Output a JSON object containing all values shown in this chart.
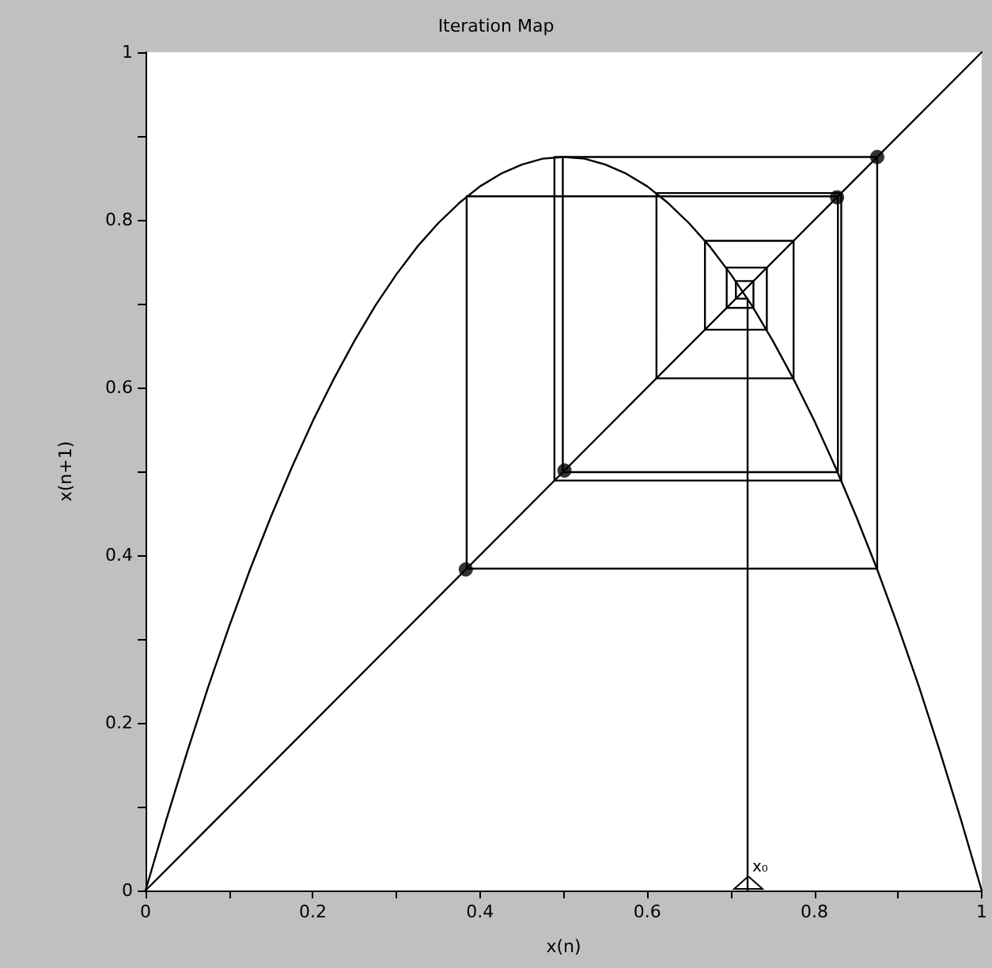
{
  "chart_data": {
    "type": "line",
    "title": "Iteration Map",
    "xlabel": "x(n)",
    "ylabel": "x(n+1)",
    "xlim": [
      0,
      1
    ],
    "ylim": [
      0,
      1
    ],
    "xticks": [
      0,
      {
        "value": 0.1,
        "label": null
      },
      0.2,
      {
        "value": 0.3,
        "label": null
      },
      0.4,
      {
        "value": 0.5,
        "label": null
      },
      0.6,
      {
        "value": 0.7,
        "label": null
      },
      0.8,
      {
        "value": 0.9,
        "label": null
      },
      1
    ],
    "yticks": [
      0,
      {
        "value": 0.1,
        "label": null
      },
      0.2,
      {
        "value": 0.3,
        "label": null
      },
      0.4,
      {
        "value": 0.5,
        "label": null
      },
      0.6,
      {
        "value": 0.7,
        "label": null
      },
      0.8,
      {
        "value": 0.9,
        "label": null
      },
      1
    ],
    "grid": false,
    "marker": "none",
    "line_style": "solid",
    "annotations": [
      {
        "text": "x₀",
        "x": 0.72,
        "y": 0
      }
    ],
    "series": [
      {
        "color": "#000000",
        "x": [
          0,
          0.025,
          0.05,
          0.075,
          0.1,
          0.125,
          0.15,
          0.175,
          0.2,
          0.225,
          0.25,
          0.275,
          0.3,
          0.325,
          0.35,
          0.375,
          0.4,
          0.425,
          0.45,
          0.475,
          0.5,
          0.525,
          0.55,
          0.575,
          0.6,
          0.625,
          0.65,
          0.675,
          0.7,
          0.725,
          0.75,
          0.775,
          0.8,
          0.825,
          0.85,
          0.875,
          0.9,
          0.925,
          0.95,
          0.975,
          1
        ],
        "values": [
          0,
          0.085,
          0.166,
          0.243,
          0.315,
          0.383,
          0.446,
          0.505,
          0.56,
          0.61,
          0.656,
          0.698,
          0.735,
          0.768,
          0.796,
          0.82,
          0.84,
          0.855,
          0.866,
          0.873,
          0.875,
          0.873,
          0.866,
          0.855,
          0.84,
          0.82,
          0.796,
          0.768,
          0.735,
          0.698,
          0.656,
          0.61,
          0.56,
          0.505,
          0.446,
          0.383,
          0.315,
          0.243,
          0.166,
          0.085,
          0
        ]
      },
      {
        "color": "#000000",
        "x": [
          0,
          1
        ],
        "values": [
          0,
          1
        ]
      },
      {
        "color": "#000000",
        "x": [
          0.72,
          0.72,
          0.706,
          0.706,
          0.727,
          0.727,
          0.695,
          0.695,
          0.743,
          0.743,
          0.669,
          0.669,
          0.775,
          0.775,
          0.611,
          0.611,
          0.832,
          0.832,
          0.489,
          0.489,
          0.875,
          0.875,
          0.384,
          0.384,
          0.828,
          0.828,
          0.499,
          0.499,
          0.875,
          0.875
        ],
        "values": [
          0,
          0.706,
          0.706,
          0.727,
          0.727,
          0.695,
          0.695,
          0.743,
          0.743,
          0.669,
          0.669,
          0.775,
          0.775,
          0.611,
          0.611,
          0.832,
          0.832,
          0.489,
          0.489,
          0.875,
          0.875,
          0.384,
          0.384,
          0.828,
          0.828,
          0.499,
          0.499,
          0.875,
          0.875,
          0.383
        ]
      },
      {
        "type": "scatter",
        "color": "#000000",
        "marker": "circle",
        "x": [
          0.383,
          0.501,
          0.827,
          0.875
        ],
        "values": [
          0.383,
          0.501,
          0.827,
          0.875
        ]
      }
    ]
  }
}
